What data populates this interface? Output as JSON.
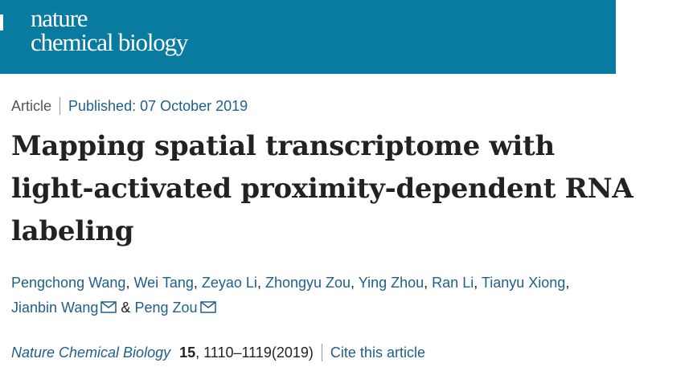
{
  "header": {
    "logo_line1": "nature",
    "logo_line2": "chemical biology",
    "brand_color": "#0a7ba0"
  },
  "meta": {
    "article_type": "Article",
    "published": "Published: 07 October 2019"
  },
  "article": {
    "title": "Mapping spatial transcriptome with light-activated proximity-dependent RNA labeling"
  },
  "authors": {
    "names": [
      "Pengchong Wang",
      "Wei Tang",
      "Zeyao Li",
      "Zhongyu Zou",
      "Ying Zhou",
      "Ran Li",
      "Tianyu Xiong",
      "Jianbin Wang",
      "Peng Zou"
    ],
    "separator": ",",
    "ampersand": "&",
    "mail_icon": "mail-icon"
  },
  "citation": {
    "journal": "Nature Chemical Biology",
    "volume": "15",
    "pages_year": ", 1110–1119(2019)",
    "cite_link": "Cite this article"
  }
}
